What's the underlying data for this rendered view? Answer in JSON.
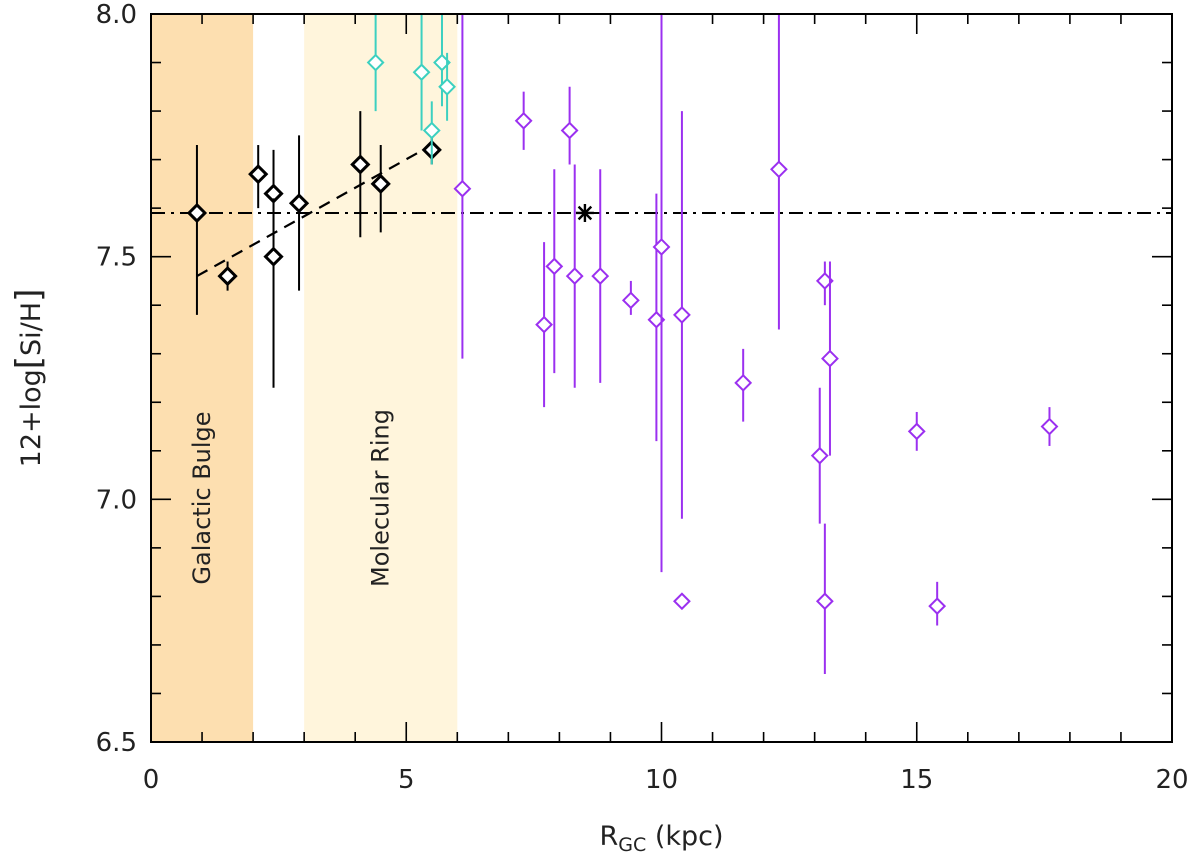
{
  "chart_data": {
    "type": "scatter",
    "title": "",
    "xlabel": {
      "main": "R",
      "sub": "GC",
      "unit": " (kpc)"
    },
    "ylabel": {
      "prefix": "12+log",
      "inner": "Si/H"
    },
    "xlim": [
      0,
      20
    ],
    "ylim": [
      6.5,
      8.0
    ],
    "x_ticks": [
      0,
      5,
      10,
      15,
      20
    ],
    "x_tick_labels": [
      "0",
      "5",
      "10",
      "15",
      "20"
    ],
    "y_ticks": [
      6.5,
      7.0,
      7.5,
      8.0
    ],
    "y_tick_labels": [
      "6.5",
      "7.0",
      "7.5",
      "8.0"
    ],
    "x_minor_step": 1,
    "y_minor_step": 0.1,
    "regions": [
      {
        "name": "galactic-bulge",
        "label": "Galactic Bulge",
        "x_range": [
          0,
          2
        ],
        "color": "#FDDFB0"
      },
      {
        "name": "molecular-ring",
        "label": "Molecular Ring",
        "x_range": [
          3,
          6
        ],
        "color": "#FFF5DC"
      }
    ],
    "reference_line": {
      "y": 7.59,
      "style": "dash-dot",
      "color": "#000000"
    },
    "solar_point": {
      "x": 8.5,
      "y": 7.59,
      "marker": "asterisk",
      "color": "#000000"
    },
    "fit_line": {
      "x": [
        0.9,
        5.5
      ],
      "y": [
        7.46,
        7.73
      ],
      "style": "dashed",
      "color": "#000000"
    },
    "series": [
      {
        "name": "inner",
        "color": "#000000",
        "bold": true,
        "points": [
          {
            "x": 0.9,
            "y": 7.59,
            "lo": 7.38,
            "hi": 7.73
          },
          {
            "x": 1.5,
            "y": 7.46,
            "lo": 7.43,
            "hi": 7.49
          },
          {
            "x": 2.1,
            "y": 7.67,
            "lo": 7.6,
            "hi": 7.73
          },
          {
            "x": 2.4,
            "y": 7.63,
            "lo": 7.54,
            "hi": 7.72
          },
          {
            "x": 2.4,
            "y": 7.5,
            "lo": 7.23,
            "hi": 7.62
          },
          {
            "x": 2.9,
            "y": 7.61,
            "lo": 7.43,
            "hi": 7.75
          },
          {
            "x": 4.1,
            "y": 7.69,
            "lo": 7.54,
            "hi": 7.8
          },
          {
            "x": 4.5,
            "y": 7.65,
            "lo": 7.55,
            "hi": 7.73
          },
          {
            "x": 5.5,
            "y": 7.72,
            "lo": 7.69,
            "hi": 7.75
          }
        ]
      },
      {
        "name": "cyan",
        "color": "#3CD0C0",
        "bold": false,
        "points": [
          {
            "x": 4.4,
            "y": 7.9,
            "lo": 7.8,
            "hi": 8.0
          },
          {
            "x": 5.3,
            "y": 7.88,
            "lo": 7.76,
            "hi": 8.0
          },
          {
            "x": 5.7,
            "y": 7.9,
            "lo": 7.81,
            "hi": 8.0
          },
          {
            "x": 5.8,
            "y": 7.85,
            "lo": 7.78,
            "hi": 7.92
          },
          {
            "x": 5.5,
            "y": 7.76,
            "lo": 7.69,
            "hi": 7.82
          }
        ]
      },
      {
        "name": "outer",
        "color": "#9B30F0",
        "bold": false,
        "points": [
          {
            "x": 6.1,
            "y": 7.64,
            "lo": 7.29,
            "hi": 8.0
          },
          {
            "x": 7.3,
            "y": 7.78,
            "lo": 7.72,
            "hi": 7.84
          },
          {
            "x": 7.7,
            "y": 7.36,
            "lo": 7.19,
            "hi": 7.53
          },
          {
            "x": 7.9,
            "y": 7.48,
            "lo": 7.26,
            "hi": 7.68
          },
          {
            "x": 8.2,
            "y": 7.76,
            "lo": 7.69,
            "hi": 7.85
          },
          {
            "x": 8.3,
            "y": 7.46,
            "lo": 7.23,
            "hi": 7.69
          },
          {
            "x": 8.8,
            "y": 7.46,
            "lo": 7.24,
            "hi": 7.68
          },
          {
            "x": 9.4,
            "y": 7.41,
            "lo": 7.38,
            "hi": 7.45
          },
          {
            "x": 9.9,
            "y": 7.37,
            "lo": 7.12,
            "hi": 7.63
          },
          {
            "x": 10.0,
            "y": 7.52,
            "lo": 6.85,
            "hi": 8.0
          },
          {
            "x": 10.4,
            "y": 7.38,
            "lo": 6.96,
            "hi": 7.8
          },
          {
            "x": 10.4,
            "y": 6.79,
            "lo": 6.79,
            "hi": 6.79
          },
          {
            "x": 11.6,
            "y": 7.24,
            "lo": 7.16,
            "hi": 7.31
          },
          {
            "x": 12.3,
            "y": 7.68,
            "lo": 7.35,
            "hi": 8.0
          },
          {
            "x": 13.1,
            "y": 7.09,
            "lo": 6.95,
            "hi": 7.23
          },
          {
            "x": 13.2,
            "y": 7.45,
            "lo": 7.4,
            "hi": 7.49
          },
          {
            "x": 13.3,
            "y": 7.29,
            "lo": 7.09,
            "hi": 7.49
          },
          {
            "x": 13.2,
            "y": 6.79,
            "lo": 6.64,
            "hi": 6.95
          },
          {
            "x": 15.0,
            "y": 7.14,
            "lo": 7.1,
            "hi": 7.18
          },
          {
            "x": 15.4,
            "y": 6.78,
            "lo": 6.74,
            "hi": 6.83
          },
          {
            "x": 17.6,
            "y": 7.15,
            "lo": 7.11,
            "hi": 7.19
          }
        ]
      }
    ]
  }
}
